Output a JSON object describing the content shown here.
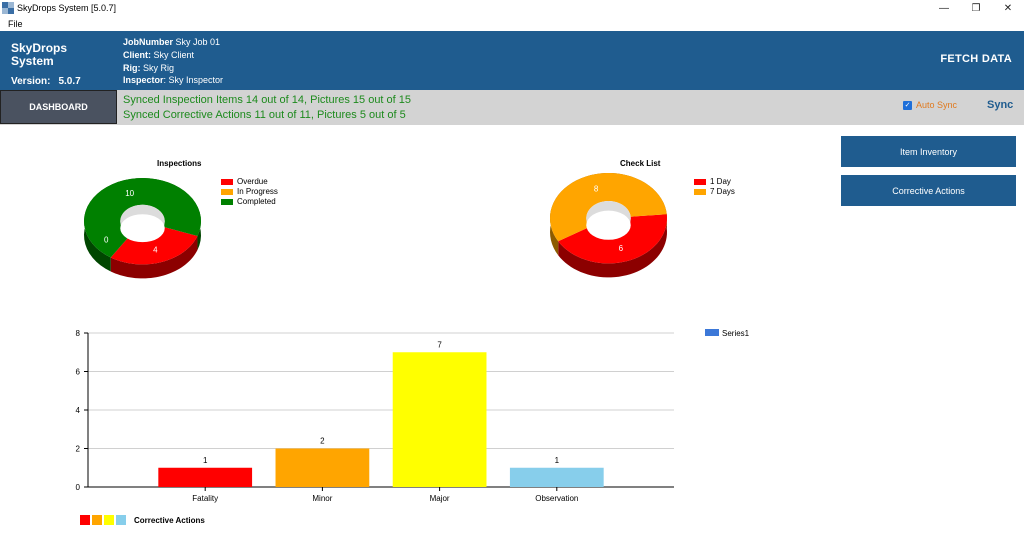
{
  "window": {
    "title": "SkyDrops System [5.0.7]",
    "minimize_icon": "minimize-icon",
    "maximize_icon": "restore-icon",
    "close_icon": "close-icon"
  },
  "menu": {
    "file": "File"
  },
  "header": {
    "brand_line1": "SkyDrops",
    "brand_line2": "System",
    "version_label": "Version:",
    "version_value": "5.0.7",
    "job_label": "JobNumber",
    "job_value": "Sky Job 01",
    "client_label": "Client:",
    "client_value": "Sky Client",
    "rig_label": "Rig:",
    "rig_value": "Sky Rig",
    "inspector_label": "Inspector",
    "inspector_value": ": Sky Inspector",
    "fetch_label": "FETCH DATA"
  },
  "status": {
    "dashboard_label": "DASHBOARD",
    "line1": "Synced Inspection Items 14 out of 14, Pictures 15 out of 15",
    "line2": "Synced Corrective Actions 11 out of 11, Pictures 5 out of 5",
    "autosync_label": "Auto Sync",
    "autosync_checked": true,
    "sync_label": "Sync"
  },
  "side_buttons": {
    "item_inventory": "Item Inventory",
    "corrective_actions": "Corrective Actions"
  },
  "chart_data": [
    {
      "type": "pie",
      "title": "Inspections",
      "categories": [
        "Overdue",
        "In Progress",
        "Completed"
      ],
      "values": [
        4,
        0,
        10
      ],
      "colors": [
        "#ff0000",
        "#ffa500",
        "#008000"
      ]
    },
    {
      "type": "pie",
      "title": "Check List",
      "categories": [
        "1 Day",
        "7 Days"
      ],
      "values": [
        6,
        8
      ],
      "colors": [
        "#ff0000",
        "#ffa500"
      ]
    },
    {
      "type": "bar",
      "categories": [
        "Fatality",
        "Minor",
        "Major",
        "Observation"
      ],
      "series": [
        {
          "name": "Series1",
          "values": [
            1,
            2,
            7,
            1
          ]
        }
      ],
      "bar_colors": [
        "#ff0000",
        "#ffa500",
        "#ffff00",
        "#87ceeb"
      ],
      "series_color": "#3c78d8",
      "ylim": [
        0,
        8
      ],
      "yticks": [
        0,
        2,
        4,
        6,
        8
      ],
      "grid": true,
      "legend_position": "top-right",
      "bottom_legend_label": "Corrective Actions"
    }
  ]
}
